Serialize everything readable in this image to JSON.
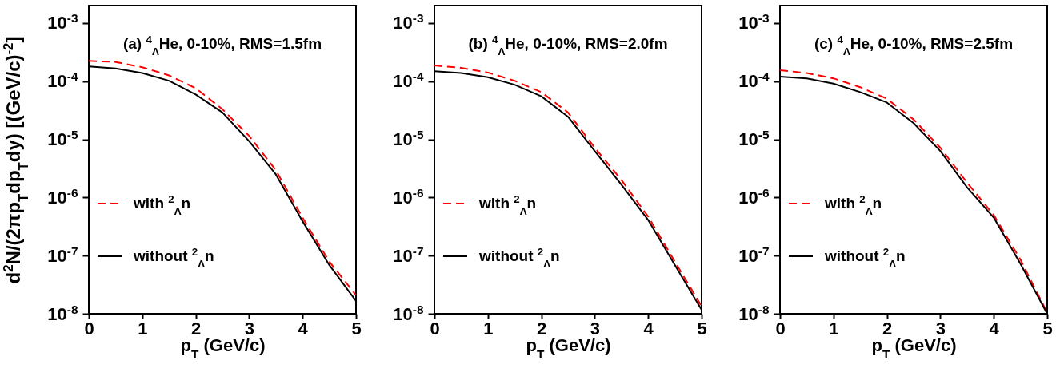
{
  "chart_data": [
    {
      "type": "line",
      "title": "(a) $^{4}$$_{Λ}$He, 0-10%, RMS=1.5fm",
      "xlabel": "p$_{T}$  (GeV/c)",
      "ylabel": "d$^{2}$N/(2πp$_{T}$dp$_{T}$dy)  [(GeV/c)$^{-2}$]",
      "x": [
        0,
        0.5,
        1,
        1.5,
        2,
        2.5,
        3,
        3.5,
        4,
        4.5,
        5
      ],
      "series": [
        {
          "name": "with $^{2}$$_{Λ}$n",
          "color": "#ff0000",
          "line_style": "dashed",
          "values": [
            0.000224,
            0.000214,
            0.000174,
            0.000126,
            7.6e-05,
            3.3e-05,
            1.15e-05,
            2.95e-06,
            4.5e-07,
            7.9e-08,
            2.1e-08
          ]
        },
        {
          "name": "without $^{2}$$_{Λ}$n",
          "color": "#000000",
          "line_style": "solid",
          "values": [
            0.00018,
            0.000166,
            0.000138,
            0.000102,
            5.9e-05,
            2.9e-05,
            9.3e-06,
            2.5e-06,
            3.9e-07,
            6.9e-08,
            1.66e-08
          ]
        }
      ],
      "xlim": [
        0,
        5
      ],
      "ylim": [
        1e-08,
        0.002
      ],
      "xticks": [
        0,
        1,
        2,
        3,
        4,
        5
      ],
      "yticks": [
        {
          "value": 1e-08,
          "label": "10$^{-8}$"
        },
        {
          "value": 1e-07,
          "label": "10$^{-7}$"
        },
        {
          "value": 1e-06,
          "label": "10$^{-6}$"
        },
        {
          "value": 1e-05,
          "label": "10$^{-5}$"
        },
        {
          "value": 0.0001,
          "label": "10$^{-4}$"
        },
        {
          "value": 0.001,
          "label": "10$^{-3}$"
        }
      ],
      "log": true,
      "legend": "left"
    },
    {
      "type": "line",
      "title": "(b) $^{4}$$_{Λ}$He, 0-10%, RMS=2.0fm",
      "xlabel": "p$_{T}$  (GeV/c)",
      "x": [
        0,
        0.5,
        1,
        1.5,
        2,
        2.5,
        3,
        3.5,
        4,
        4.5,
        5
      ],
      "series": [
        {
          "name": "with $^{2}$$_{Λ}$n",
          "color": "#ff0000",
          "line_style": "dashed",
          "values": [
            0.000186,
            0.00017,
            0.000141,
            0.000102,
            6.5e-05,
            2.9e-05,
            7.2e-06,
            2e-06,
            4.7e-07,
            7.9e-08,
            1.35e-08
          ]
        },
        {
          "name": "without $^{2}$$_{Λ}$n",
          "color": "#000000",
          "line_style": "solid",
          "values": [
            0.000148,
            0.000138,
            0.000117,
            8.7e-05,
            5.5e-05,
            2.45e-05,
            6.3e-06,
            1.66e-06,
            4.1e-07,
            6.9e-08,
            1.17e-08
          ]
        }
      ],
      "xlim": [
        0,
        5
      ],
      "ylim": [
        1e-08,
        0.002
      ],
      "xticks": [
        0,
        1,
        2,
        3,
        4,
        5
      ],
      "yticks": [
        {
          "value": 1e-08,
          "label": "10$^{-8}$"
        },
        {
          "value": 1e-07,
          "label": "10$^{-7}$"
        },
        {
          "value": 1e-06,
          "label": "10$^{-6}$"
        },
        {
          "value": 1e-05,
          "label": "10$^{-5}$"
        },
        {
          "value": 0.0001,
          "label": "10$^{-4}$"
        },
        {
          "value": 0.001,
          "label": "10$^{-3}$"
        }
      ],
      "log": true,
      "legend": "left"
    },
    {
      "type": "line",
      "title": "(c) $^{4}$$_{Λ}$He, 0-10%, RMS=2.5fm",
      "xlabel": "p$_{T}$  (GeV/c)",
      "x": [
        0,
        0.5,
        1,
        1.5,
        2,
        2.5,
        3,
        3.5,
        4,
        4.5,
        5
      ],
      "series": [
        {
          "name": "with $^{2}$$_{Λ}$n",
          "color": "#ff0000",
          "line_style": "dashed",
          "values": [
            0.000155,
            0.000138,
            0.000112,
            7.9e-05,
            5e-05,
            2.2e-05,
            7.2e-06,
            1.8e-06,
            5e-07,
            8.5e-08,
            1.05e-08
          ]
        },
        {
          "name": "without $^{2}$$_{Λ}$n",
          "color": "#000000",
          "line_style": "solid",
          "values": [
            0.00012,
            0.000112,
            9.1e-05,
            6.5e-05,
            4.3e-05,
            1.9e-05,
            6.3e-06,
            1.5e-06,
            4.5e-07,
            7.2e-08,
            1e-08
          ]
        }
      ],
      "xlim": [
        0,
        5
      ],
      "ylim": [
        1e-08,
        0.002
      ],
      "xticks": [
        0,
        1,
        2,
        3,
        4,
        5
      ],
      "yticks": [
        {
          "value": 1e-08,
          "label": "10$^{-8}$"
        },
        {
          "value": 1e-07,
          "label": "10$^{-7}$"
        },
        {
          "value": 1e-06,
          "label": "10$^{-6}$"
        },
        {
          "value": 1e-05,
          "label": "10$^{-5}$"
        },
        {
          "value": 0.0001,
          "label": "10$^{-4}$"
        },
        {
          "value": 0.001,
          "label": "10$^{-3}$"
        }
      ],
      "log": true,
      "legend": "left"
    }
  ]
}
